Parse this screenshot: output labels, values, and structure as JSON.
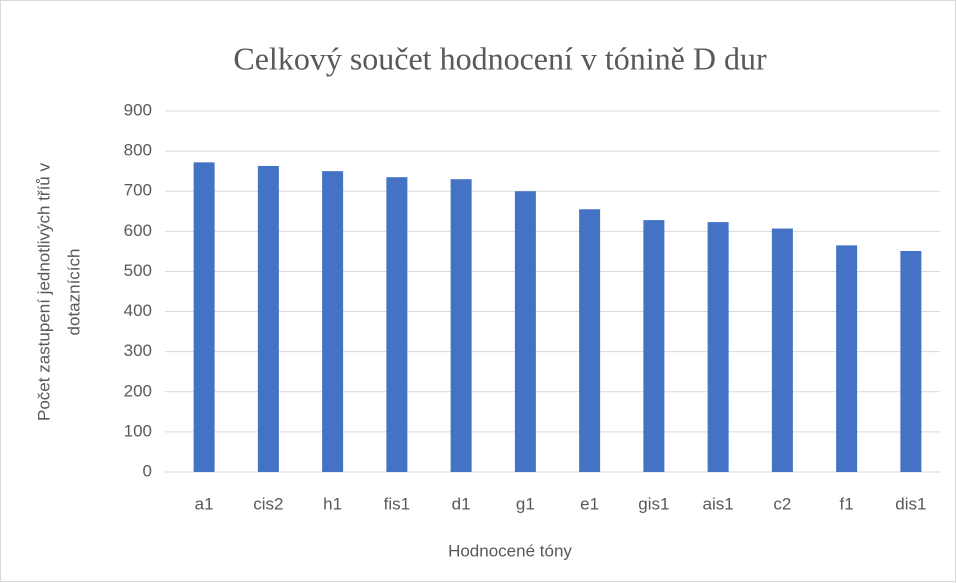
{
  "chart_data": {
    "type": "bar",
    "title": "Celkový součet hodnocení v tónině D dur",
    "xlabel": "Hodnocené tóny",
    "ylabel": [
      "Počet zastupení jednotlivých tříů v",
      "dotaznících"
    ],
    "categories": [
      "a1",
      "cis2",
      "h1",
      "fis1",
      "d1",
      "g1",
      "e1",
      "gis1",
      "ais1",
      "c2",
      "f1",
      "dis1"
    ],
    "values": [
      772,
      763,
      750,
      735,
      730,
      700,
      655,
      628,
      623,
      607,
      565,
      551
    ],
    "color": "#4472c4",
    "ylim": [
      0,
      900
    ],
    "yticks": [
      0,
      100,
      200,
      300,
      400,
      500,
      600,
      700,
      800,
      900
    ],
    "grid": true
  }
}
